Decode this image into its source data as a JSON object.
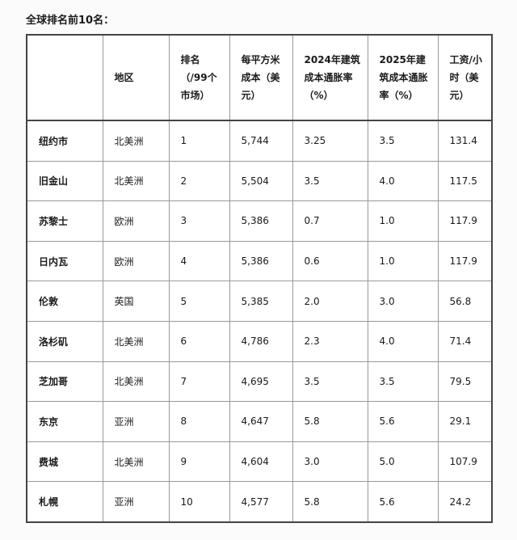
{
  "title": "全球排名前10名：",
  "headers": [
    "",
    "地区",
    "排名（/99个市场）",
    "每平方米成本（美元）",
    "2024年建筑成本通胀率（%）",
    "2025年建筑成本通胀率（%）",
    "工资/小时（美元）"
  ],
  "rows": [
    [
      "纽约市",
      "北美洲",
      "1",
      "5,744",
      "3.25",
      "3.5",
      "131.4"
    ],
    [
      "旧金山",
      "北美洲",
      "2",
      "5,504",
      "3.5",
      "4.0",
      "117.5"
    ],
    [
      "苏黎士",
      "欧洲",
      "3",
      "5,386",
      "0.7",
      "1.0",
      "117.9"
    ],
    [
      "日内瓦",
      "欧洲",
      "4",
      "5,386",
      "0.6",
      "1.0",
      "117.9"
    ],
    [
      "伦敦",
      "英国",
      "5",
      "5,385",
      "2.0",
      "3.0",
      "56.8"
    ],
    [
      "洛杉矶",
      "北美洲",
      "6",
      "4,786",
      "2.3",
      "4.0",
      "71.4"
    ],
    [
      "芝加哥",
      "北美洲",
      "7",
      "4,695",
      "3.5",
      "3.5",
      "79.5"
    ],
    [
      "东京",
      "亚洲",
      "8",
      "4,647",
      "5.8",
      "5.6",
      "29.1"
    ],
    [
      "费城",
      "北美洲",
      "9",
      "4,604",
      "3.0",
      "5.0",
      "107.9"
    ],
    [
      "札幌",
      "亚洲",
      "10",
      "4,577",
      "5.8",
      "5.6",
      "24.2"
    ]
  ]
}
